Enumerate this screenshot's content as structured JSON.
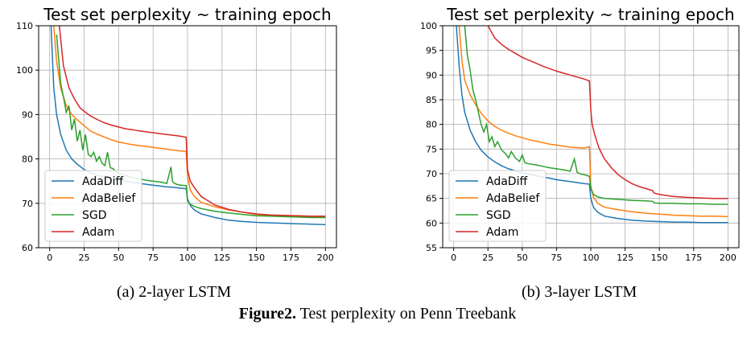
{
  "chart_data": [
    {
      "type": "line",
      "title": "Test set perplexity ~ training epoch",
      "subcaption": "(a) 2-layer LSTM",
      "xlabel": "",
      "ylabel": "",
      "xlim": [
        -8,
        208
      ],
      "ylim": [
        60,
        110
      ],
      "xticks": [
        0,
        25,
        50,
        75,
        100,
        125,
        150,
        175,
        200
      ],
      "yticks": [
        60,
        70,
        80,
        90,
        100,
        110
      ],
      "grid": true,
      "legend": "lower-left",
      "series": [
        {
          "name": "AdaDiff",
          "color": "#1f77b4",
          "x": [
            1,
            3,
            5,
            8,
            12,
            16,
            20,
            25,
            30,
            35,
            40,
            45,
            50,
            55,
            60,
            65,
            70,
            75,
            80,
            85,
            90,
            95,
            99,
            100,
            102,
            105,
            110,
            120,
            130,
            140,
            150,
            160,
            170,
            180,
            190,
            200
          ],
          "y": [
            110,
            96,
            90,
            85.5,
            82,
            80,
            78.8,
            77.6,
            76.8,
            76.3,
            75.9,
            75.5,
            75.2,
            75,
            74.7,
            74.5,
            74.3,
            74.1,
            73.9,
            73.7,
            73.6,
            73.4,
            73.3,
            71,
            69.5,
            68.5,
            67.6,
            66.8,
            66.2,
            65.9,
            65.7,
            65.6,
            65.5,
            65.4,
            65.3,
            65.2
          ]
        },
        {
          "name": "AdaBelief",
          "color": "#ff7f0e",
          "x": [
            3,
            5,
            8,
            12,
            16,
            20,
            25,
            30,
            35,
            40,
            45,
            50,
            55,
            60,
            65,
            70,
            75,
            80,
            85,
            90,
            95,
            99,
            100,
            102,
            105,
            110,
            120,
            130,
            140,
            150,
            160,
            170,
            180,
            190,
            200
          ],
          "y": [
            110,
            102,
            96,
            92,
            90,
            88.8,
            87.5,
            86.2,
            85.5,
            84.9,
            84.3,
            83.8,
            83.5,
            83.2,
            83,
            82.8,
            82.6,
            82.4,
            82.2,
            82,
            81.8,
            81.7,
            76,
            73,
            71.5,
            70.2,
            69.2,
            68.5,
            68,
            67.5,
            67.3,
            67.2,
            67.1,
            67,
            66.9
          ]
        },
        {
          "name": "SGD",
          "color": "#2ca02c",
          "x": [
            5,
            8,
            10,
            12,
            14,
            16,
            18,
            20,
            22,
            24,
            26,
            28,
            30,
            32,
            34,
            36,
            38,
            40,
            42,
            44,
            46,
            48,
            50,
            55,
            60,
            65,
            70,
            75,
            80,
            85,
            88,
            89,
            90,
            92,
            95,
            99,
            100,
            102,
            105,
            110,
            120,
            130,
            140,
            150,
            160,
            170,
            180,
            190,
            200
          ],
          "y": [
            108,
            97,
            94,
            90.5,
            92,
            86.5,
            89,
            84,
            86.5,
            82,
            85.5,
            81,
            80.5,
            81.5,
            79.5,
            80.5,
            79,
            78.5,
            81.5,
            78,
            77.8,
            77.2,
            76.8,
            76.3,
            75.8,
            75.5,
            75.2,
            75,
            74.8,
            74.5,
            78.2,
            75,
            74.6,
            74.3,
            74.1,
            74,
            70.5,
            69.8,
            69.3,
            68.8,
            68.2,
            67.8,
            67.5,
            67.2,
            67.1,
            67,
            66.9,
            66.8,
            66.8
          ]
        },
        {
          "name": "Adam",
          "color": "#d62728",
          "x": [
            7,
            10,
            14,
            18,
            22,
            26,
            30,
            35,
            40,
            45,
            50,
            55,
            60,
            65,
            70,
            75,
            80,
            85,
            90,
            95,
            99,
            100,
            102,
            105,
            110,
            120,
            130,
            140,
            150,
            160,
            170,
            180,
            190,
            200
          ],
          "y": [
            110,
            101,
            96,
            93.5,
            91.5,
            90.5,
            89.6,
            88.8,
            88.1,
            87.6,
            87.2,
            86.8,
            86.6,
            86.3,
            86.1,
            85.9,
            85.7,
            85.5,
            85.3,
            85.1,
            84.9,
            77.5,
            75,
            73.5,
            71.5,
            69.6,
            68.6,
            68,
            67.6,
            67.4,
            67.3,
            67.2,
            67.1,
            67.1
          ]
        }
      ]
    },
    {
      "type": "line",
      "title": "Test set perplexity ~ training epoch",
      "subcaption": "(b) 3-layer LSTM",
      "xlabel": "",
      "ylabel": "",
      "xlim": [
        -8,
        208
      ],
      "ylim": [
        55,
        100
      ],
      "xticks": [
        0,
        25,
        50,
        75,
        100,
        125,
        150,
        175,
        200
      ],
      "yticks": [
        55,
        60,
        65,
        70,
        75,
        80,
        85,
        90,
        95,
        100
      ],
      "grid": true,
      "legend": "lower-left",
      "series": [
        {
          "name": "AdaDiff",
          "color": "#1f77b4",
          "x": [
            2,
            4,
            6,
            8,
            12,
            16,
            20,
            25,
            30,
            35,
            40,
            45,
            50,
            55,
            60,
            65,
            70,
            75,
            80,
            85,
            90,
            95,
            99,
            100,
            102,
            105,
            110,
            120,
            130,
            140,
            150,
            160,
            170,
            180,
            190,
            200
          ],
          "y": [
            100,
            92,
            86,
            82.5,
            78.8,
            76.5,
            74.8,
            73.4,
            72.4,
            71.6,
            71,
            70.6,
            70.2,
            69.9,
            69.6,
            69.3,
            69.1,
            68.8,
            68.6,
            68.4,
            68.2,
            68,
            67.9,
            65,
            63.2,
            62.2,
            61.4,
            60.9,
            60.6,
            60.4,
            60.3,
            60.2,
            60.2,
            60.1,
            60.1,
            60.1
          ]
        },
        {
          "name": "AdaBelief",
          "color": "#ff7f0e",
          "x": [
            4,
            6,
            8,
            12,
            16,
            20,
            25,
            30,
            35,
            40,
            45,
            50,
            55,
            60,
            65,
            70,
            75,
            80,
            85,
            90,
            95,
            99,
            100,
            102,
            105,
            110,
            120,
            130,
            140,
            150,
            160,
            170,
            180,
            190,
            200
          ],
          "y": [
            100,
            93,
            89,
            86,
            84,
            82.3,
            80.7,
            79.6,
            78.8,
            78.2,
            77.7,
            77.3,
            76.9,
            76.6,
            76.3,
            76,
            75.8,
            75.6,
            75.4,
            75.3,
            75.2,
            75.5,
            67.5,
            65.2,
            64,
            63.2,
            62.7,
            62.3,
            62,
            61.8,
            61.6,
            61.5,
            61.4,
            61.4,
            61.3
          ]
        },
        {
          "name": "SGD",
          "color": "#2ca02c",
          "x": [
            8,
            10,
            12,
            14,
            16,
            18,
            20,
            22,
            24,
            26,
            28,
            30,
            32,
            35,
            38,
            40,
            42,
            45,
            48,
            50,
            52,
            55,
            60,
            65,
            70,
            75,
            80,
            85,
            88,
            90,
            92,
            95,
            99,
            100,
            102,
            105,
            110,
            120,
            130,
            140,
            145,
            146,
            150,
            160,
            170,
            180,
            190,
            200
          ],
          "y": [
            100,
            94,
            91,
            87,
            85,
            82.5,
            80,
            78.5,
            80,
            76.5,
            77.5,
            75.5,
            76.5,
            74.8,
            74,
            73.2,
            74.5,
            73.2,
            72.5,
            73.8,
            72.2,
            72,
            71.8,
            71.5,
            71.2,
            71,
            70.8,
            70.5,
            73,
            70.3,
            70,
            69.8,
            69.5,
            67,
            65.8,
            65.3,
            65,
            64.8,
            64.6,
            64.5,
            64.4,
            64.1,
            64,
            64,
            63.9,
            63.9,
            63.8,
            63.8
          ]
        },
        {
          "name": "Adam",
          "color": "#d62728",
          "x": [
            25,
            30,
            35,
            40,
            45,
            50,
            55,
            60,
            65,
            70,
            75,
            80,
            85,
            90,
            95,
            99,
            100,
            101,
            103,
            106,
            110,
            115,
            120,
            125,
            130,
            135,
            140,
            145,
            146,
            150,
            160,
            170,
            180,
            190,
            200
          ],
          "y": [
            100,
            97.5,
            96.2,
            95.2,
            94.4,
            93.6,
            93,
            92.4,
            91.8,
            91.3,
            90.8,
            90.4,
            90,
            89.6,
            89.2,
            88.8,
            83,
            80,
            77.8,
            75.2,
            73,
            71.2,
            69.8,
            68.8,
            68,
            67.4,
            67,
            66.6,
            66.1,
            65.8,
            65.4,
            65.2,
            65.1,
            65,
            65
          ]
        }
      ]
    }
  ],
  "captions": {
    "sub_a": "(a) 2-layer LSTM",
    "sub_b": "(b) 3-layer LSTM",
    "figure_label": "Figure2.",
    "figure_text": " Test perplexity on Penn Treebank"
  }
}
